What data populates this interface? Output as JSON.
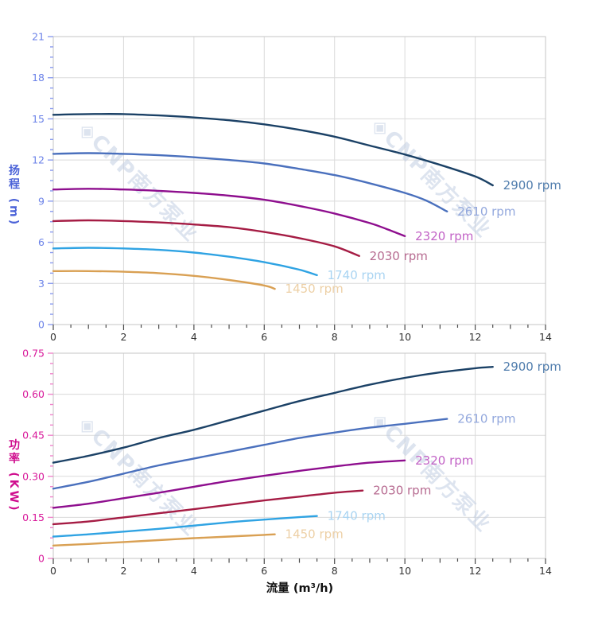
{
  "page": {
    "background": "#ffffff"
  },
  "watermark": {
    "logo_glyph": "◈",
    "text": "CNP南方泵业",
    "color": "#c3cfe3",
    "opacity": 0.55
  },
  "style": {
    "grid_color": "#dadada",
    "plot_border_color": "#c6c6c6",
    "x_tick_color": "#4a4a4a",
    "x_tick_label_color": "#333333",
    "x_title_color": "#111111"
  },
  "series_styles": [
    {
      "name": "2900 rpm",
      "line_color": "#1b4166",
      "label_color": "#507dad"
    },
    {
      "name": "2610 rpm",
      "line_color": "#4a70bd",
      "label_color": "#93a8dd"
    },
    {
      "name": "2320 rpm",
      "line_color": "#8e0e8e",
      "label_color": "#c263c6"
    },
    {
      "name": "2030 rpm",
      "line_color": "#a51c44",
      "label_color": "#b66a90"
    },
    {
      "name": "1740 rpm",
      "line_color": "#2fa3e3",
      "label_color": "#a9d4f2"
    },
    {
      "name": "1450 rpm",
      "line_color": "#d9a053",
      "label_color": "#edd0a6"
    }
  ],
  "chart_data": [
    {
      "type": "line",
      "title": "",
      "xlabel": "流量 (m³/h)",
      "ylabel": "扬程 (m)",
      "xlim": [
        0,
        14
      ],
      "ylim": [
        0,
        21
      ],
      "grid": true,
      "legend_position": "curve-end-labels",
      "x_major_ticks": [
        0,
        2,
        4,
        6,
        8,
        10,
        12,
        14
      ],
      "x_tick_labels": [
        "0",
        "2",
        "4",
        "6",
        "8",
        "10",
        "12",
        "14"
      ],
      "x_minor_step": 0.5,
      "y_major_ticks": [
        0,
        3,
        6,
        9,
        12,
        15,
        18,
        21
      ],
      "y_tick_labels": [
        "0",
        "3",
        "6",
        "9",
        "12",
        "15",
        "18",
        "21"
      ],
      "y_minor_step": 0.75,
      "axis_text_color": "#6b82e8",
      "axis_tick_color": "#8b9cef",
      "axis_title_color": "#4c63d8",
      "series": [
        {
          "name": "2900 rpm",
          "points": [
            [
              0,
              15.3
            ],
            [
              1,
              15.35
            ],
            [
              2,
              15.35
            ],
            [
              3,
              15.25
            ],
            [
              4,
              15.1
            ],
            [
              5,
              14.9
            ],
            [
              6,
              14.6
            ],
            [
              7,
              14.2
            ],
            [
              8,
              13.7
            ],
            [
              9,
              13.05
            ],
            [
              10,
              12.4
            ],
            [
              11,
              11.65
            ],
            [
              12,
              10.8
            ],
            [
              12.5,
              10.15
            ]
          ]
        },
        {
          "name": "2610 rpm",
          "points": [
            [
              0,
              12.45
            ],
            [
              1,
              12.5
            ],
            [
              2,
              12.45
            ],
            [
              3,
              12.35
            ],
            [
              4,
              12.2
            ],
            [
              5,
              12.0
            ],
            [
              6,
              11.75
            ],
            [
              7,
              11.35
            ],
            [
              8,
              10.9
            ],
            [
              9,
              10.3
            ],
            [
              10,
              9.6
            ],
            [
              10.6,
              9.05
            ],
            [
              11.2,
              8.25
            ]
          ]
        },
        {
          "name": "2320 rpm",
          "points": [
            [
              0,
              9.85
            ],
            [
              1,
              9.9
            ],
            [
              2,
              9.85
            ],
            [
              3,
              9.75
            ],
            [
              4,
              9.6
            ],
            [
              5,
              9.4
            ],
            [
              6,
              9.1
            ],
            [
              7,
              8.65
            ],
            [
              8,
              8.1
            ],
            [
              9,
              7.4
            ],
            [
              9.5,
              6.95
            ],
            [
              10,
              6.45
            ]
          ]
        },
        {
          "name": "2030 rpm",
          "points": [
            [
              0,
              7.55
            ],
            [
              1,
              7.6
            ],
            [
              2,
              7.55
            ],
            [
              3,
              7.45
            ],
            [
              4,
              7.3
            ],
            [
              5,
              7.1
            ],
            [
              6,
              6.75
            ],
            [
              7,
              6.3
            ],
            [
              8,
              5.7
            ],
            [
              8.7,
              5.0
            ]
          ]
        },
        {
          "name": "1740 rpm",
          "points": [
            [
              0,
              5.55
            ],
            [
              1,
              5.6
            ],
            [
              2,
              5.55
            ],
            [
              3,
              5.45
            ],
            [
              4,
              5.25
            ],
            [
              5,
              4.95
            ],
            [
              6,
              4.55
            ],
            [
              7,
              4.0
            ],
            [
              7.5,
              3.6
            ]
          ]
        },
        {
          "name": "1450 rpm",
          "points": [
            [
              0,
              3.9
            ],
            [
              1,
              3.9
            ],
            [
              2,
              3.85
            ],
            [
              3,
              3.75
            ],
            [
              4,
              3.55
            ],
            [
              5,
              3.25
            ],
            [
              6,
              2.85
            ],
            [
              6.3,
              2.6
            ]
          ]
        }
      ]
    },
    {
      "type": "line",
      "title": "",
      "xlabel": "流量 (m³/h)",
      "ylabel": "功率 (KW)",
      "xlim": [
        0,
        14
      ],
      "ylim": [
        0,
        0.75
      ],
      "grid": true,
      "legend_position": "curve-end-labels",
      "x_major_ticks": [
        0,
        2,
        4,
        6,
        8,
        10,
        12,
        14
      ],
      "x_tick_labels": [
        "0",
        "2",
        "4",
        "6",
        "8",
        "10",
        "12",
        "14"
      ],
      "x_minor_step": 0.5,
      "y_major_ticks": [
        0,
        0.15,
        0.3,
        0.45,
        0.6,
        0.75
      ],
      "y_tick_labels": [
        "0",
        "0.15",
        "0.30",
        "0.45",
        "0.60",
        "0.75"
      ],
      "y_minor_step": 0.0375,
      "axis_text_color": "#d8189a",
      "axis_tick_color": "#ef86cb",
      "axis_title_color": "#cf0e8e",
      "series": [
        {
          "name": "2900 rpm",
          "points": [
            [
              0,
              0.35
            ],
            [
              1,
              0.375
            ],
            [
              2,
              0.405
            ],
            [
              3,
              0.44
            ],
            [
              4,
              0.47
            ],
            [
              5,
              0.505
            ],
            [
              6,
              0.54
            ],
            [
              7,
              0.575
            ],
            [
              8,
              0.605
            ],
            [
              9,
              0.635
            ],
            [
              10,
              0.66
            ],
            [
              11,
              0.68
            ],
            [
              12,
              0.695
            ],
            [
              12.5,
              0.7
            ]
          ]
        },
        {
          "name": "2610 rpm",
          "points": [
            [
              0,
              0.255
            ],
            [
              1,
              0.28
            ],
            [
              2,
              0.31
            ],
            [
              3,
              0.34
            ],
            [
              4,
              0.365
            ],
            [
              5,
              0.39
            ],
            [
              6,
              0.415
            ],
            [
              7,
              0.44
            ],
            [
              8,
              0.46
            ],
            [
              9,
              0.478
            ],
            [
              10,
              0.492
            ],
            [
              11.2,
              0.51
            ]
          ]
        },
        {
          "name": "2320 rpm",
          "points": [
            [
              0,
              0.185
            ],
            [
              1,
              0.2
            ],
            [
              2,
              0.22
            ],
            [
              3,
              0.24
            ],
            [
              4,
              0.262
            ],
            [
              5,
              0.283
            ],
            [
              6,
              0.302
            ],
            [
              7,
              0.32
            ],
            [
              8,
              0.336
            ],
            [
              9,
              0.35
            ],
            [
              10,
              0.358
            ]
          ]
        },
        {
          "name": "2030 rpm",
          "points": [
            [
              0,
              0.125
            ],
            [
              1,
              0.135
            ],
            [
              2,
              0.15
            ],
            [
              3,
              0.165
            ],
            [
              4,
              0.18
            ],
            [
              5,
              0.196
            ],
            [
              6,
              0.212
            ],
            [
              7,
              0.226
            ],
            [
              8,
              0.24
            ],
            [
              8.8,
              0.248
            ]
          ]
        },
        {
          "name": "1740 rpm",
          "points": [
            [
              0,
              0.08
            ],
            [
              1,
              0.088
            ],
            [
              2,
              0.098
            ],
            [
              3,
              0.108
            ],
            [
              4,
              0.12
            ],
            [
              5,
              0.132
            ],
            [
              6,
              0.142
            ],
            [
              7,
              0.151
            ],
            [
              7.5,
              0.155
            ]
          ]
        },
        {
          "name": "1450 rpm",
          "points": [
            [
              0,
              0.047
            ],
            [
              1,
              0.053
            ],
            [
              2,
              0.06
            ],
            [
              3,
              0.067
            ],
            [
              4,
              0.074
            ],
            [
              5,
              0.08
            ],
            [
              6,
              0.086
            ],
            [
              6.3,
              0.088
            ]
          ]
        }
      ]
    }
  ]
}
